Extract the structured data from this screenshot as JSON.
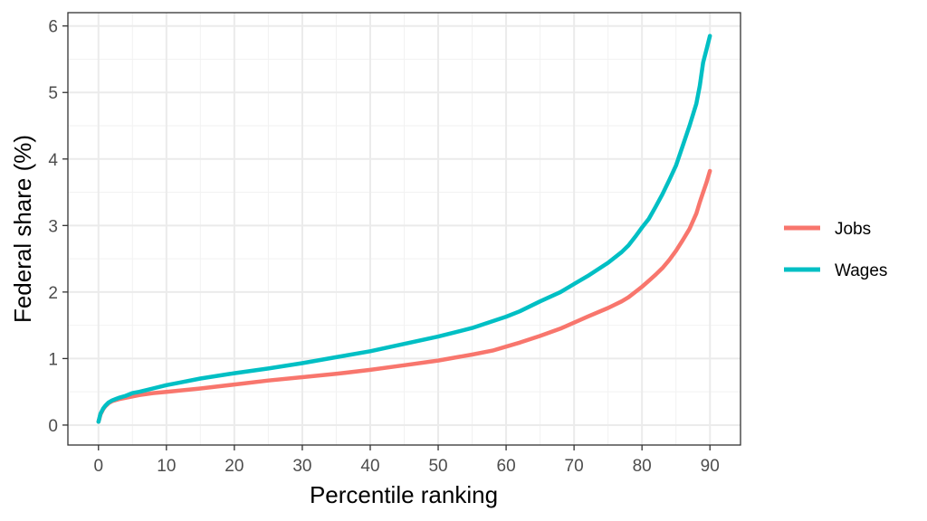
{
  "chart_data": {
    "type": "line",
    "title": "",
    "xlabel": "Percentile ranking",
    "ylabel": "Federal share (%)",
    "xlim": [
      -4.5,
      94.5
    ],
    "ylim": [
      -0.3,
      6.2
    ],
    "x_ticks": [
      0,
      10,
      20,
      30,
      40,
      50,
      60,
      70,
      80,
      90
    ],
    "y_ticks": [
      0,
      1,
      2,
      3,
      4,
      5,
      6
    ],
    "grid": true,
    "legend_position": "right",
    "series": [
      {
        "name": "Jobs",
        "color": "#F8766D",
        "x": [
          0,
          0.3,
          0.7,
          1,
          1.5,
          2,
          3,
          4,
          5,
          6,
          8,
          10,
          12,
          15,
          20,
          25,
          30,
          35,
          40,
          45,
          50,
          55,
          58,
          60,
          62,
          65,
          68,
          70,
          72,
          75,
          77,
          78,
          79,
          80,
          81,
          82,
          83,
          84,
          85,
          86,
          87,
          88,
          88.5,
          89,
          89.5,
          90
        ],
        "y": [
          0.05,
          0.16,
          0.24,
          0.28,
          0.33,
          0.36,
          0.39,
          0.41,
          0.43,
          0.45,
          0.48,
          0.5,
          0.52,
          0.55,
          0.61,
          0.67,
          0.72,
          0.77,
          0.83,
          0.9,
          0.97,
          1.06,
          1.12,
          1.18,
          1.24,
          1.34,
          1.45,
          1.54,
          1.63,
          1.76,
          1.86,
          1.92,
          2.0,
          2.08,
          2.17,
          2.26,
          2.36,
          2.48,
          2.62,
          2.78,
          2.95,
          3.18,
          3.35,
          3.5,
          3.65,
          3.82
        ]
      },
      {
        "name": "Wages",
        "color": "#00BFC4",
        "x": [
          0,
          0.3,
          0.7,
          1,
          1.5,
          2,
          3,
          4,
          5,
          6,
          8,
          10,
          12,
          15,
          20,
          25,
          30,
          35,
          40,
          45,
          50,
          55,
          60,
          62,
          65,
          68,
          70,
          72,
          75,
          77,
          78,
          79,
          80,
          81,
          82,
          83,
          84,
          85,
          86,
          87,
          88,
          88.5,
          89,
          89.5,
          90
        ],
        "y": [
          0.05,
          0.17,
          0.25,
          0.29,
          0.34,
          0.37,
          0.41,
          0.44,
          0.48,
          0.5,
          0.55,
          0.6,
          0.64,
          0.7,
          0.78,
          0.85,
          0.93,
          1.02,
          1.11,
          1.22,
          1.33,
          1.46,
          1.63,
          1.71,
          1.86,
          2.0,
          2.12,
          2.24,
          2.44,
          2.6,
          2.7,
          2.83,
          2.97,
          3.1,
          3.28,
          3.47,
          3.68,
          3.9,
          4.2,
          4.5,
          4.83,
          5.1,
          5.45,
          5.65,
          5.85
        ]
      }
    ]
  }
}
